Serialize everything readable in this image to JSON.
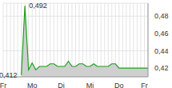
{
  "chart_data": {
    "type": "area",
    "categories": [
      "Fr",
      null,
      null,
      null,
      null,
      null,
      null,
      null,
      "Mo",
      null,
      null,
      null,
      null,
      null,
      null,
      null,
      "Di",
      null,
      null,
      null,
      null,
      null,
      null,
      null,
      "Mi",
      null,
      null,
      null,
      null,
      null,
      null,
      null,
      "Do",
      null,
      null,
      null,
      null,
      null,
      null,
      "Fr",
      null
    ],
    "values": [
      null,
      null,
      null,
      null,
      null,
      0.412,
      0.492,
      0.418,
      0.426,
      0.418,
      0.422,
      0.422,
      0.422,
      0.425,
      0.425,
      0.422,
      0.422,
      0.422,
      0.428,
      0.422,
      0.422,
      0.425,
      0.425,
      0.422,
      0.422,
      0.425,
      0.422,
      0.422,
      0.422,
      0.422,
      0.425,
      0.425,
      0.42,
      0.42,
      0.42,
      0.42,
      0.42,
      0.42,
      0.42,
      0.42,
      0.42
    ],
    "color": "#1e9e1e",
    "ylim": [
      0.41,
      0.495
    ],
    "yticks": [
      {
        "value": 0.42,
        "label": "0,42"
      },
      {
        "value": 0.44,
        "label": "0,44"
      },
      {
        "value": 0.46,
        "label": "0,46"
      },
      {
        "value": 0.48,
        "label": "0,48"
      }
    ],
    "grid": true,
    "annotations": [
      {
        "text": "0,492",
        "x": 6,
        "y": 0.492
      },
      {
        "text": "0,412",
        "x": 5,
        "y": 0.412
      }
    ]
  }
}
